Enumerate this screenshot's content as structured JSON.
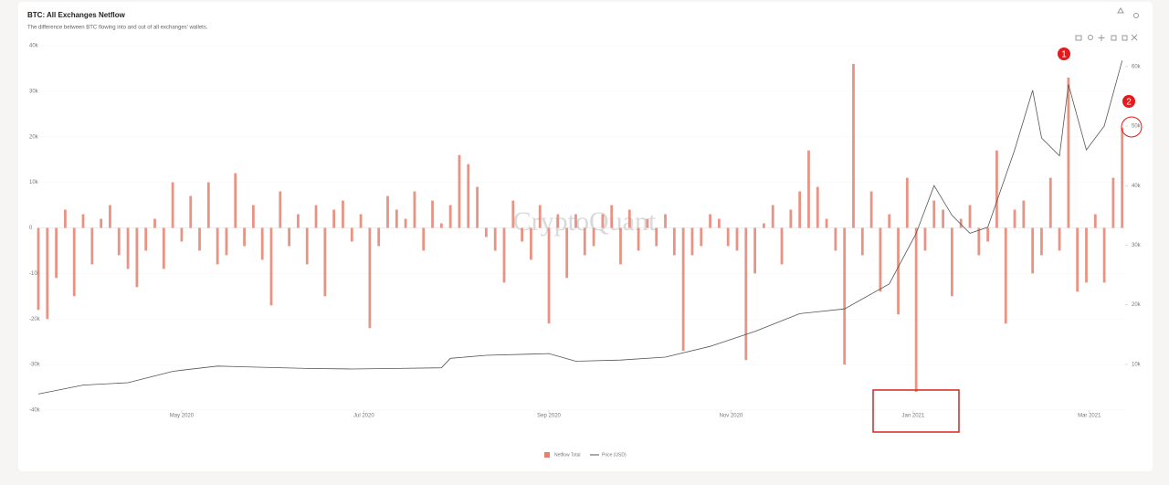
{
  "chart_data": {
    "type": "bar",
    "title": "BTC: All Exchanges Netflow",
    "subtitle": "The difference between BTC flowing into and out of all exchanges' wallets.",
    "watermark": "CryptoQuant",
    "xlim": [
      0,
      364
    ],
    "xticks": [
      {
        "value": 48,
        "label": "May 2020"
      },
      {
        "value": 109,
        "label": "Jul 2020"
      },
      {
        "value": 171,
        "label": "Sep 2020"
      },
      {
        "value": 232,
        "label": "Nov 2020"
      },
      {
        "value": 293,
        "label": "Jan 2021"
      },
      {
        "value": 352,
        "label": "Mar 2021"
      }
    ],
    "ylim": [
      -40000,
      40000
    ],
    "yticks": [
      {
        "value": -40000,
        "label": "-40k"
      },
      {
        "value": -30000,
        "label": "-30k"
      },
      {
        "value": -20000,
        "label": "-20k"
      },
      {
        "value": -10000,
        "label": "-10k"
      },
      {
        "value": 0,
        "label": "0"
      },
      {
        "value": 10000,
        "label": "10k"
      },
      {
        "value": 20000,
        "label": "20k"
      },
      {
        "value": 30000,
        "label": "30k"
      },
      {
        "value": 40000,
        "label": "40k"
      }
    ],
    "y2lim": [
      2300,
      63500
    ],
    "y2ticks": [
      {
        "value": 10000,
        "label": "10k"
      },
      {
        "value": 20000,
        "label": "20k"
      },
      {
        "value": 30000,
        "label": "30k"
      },
      {
        "value": 40000,
        "label": "40k"
      },
      {
        "value": 50000,
        "label": "50k"
      },
      {
        "value": 60000,
        "label": "60k"
      }
    ],
    "grid": true,
    "annotations": [
      "1",
      "2"
    ],
    "series": [
      {
        "name": "Netflow Total",
        "type": "bar",
        "color": "#e5806f",
        "x": [
          0,
          3,
          6,
          9,
          12,
          15,
          18,
          21,
          24,
          27,
          30,
          33,
          36,
          39,
          42,
          45,
          48,
          51,
          54,
          57,
          60,
          63,
          66,
          69,
          72,
          75,
          78,
          81,
          84,
          87,
          90,
          93,
          96,
          99,
          102,
          105,
          108,
          111,
          114,
          117,
          120,
          123,
          126,
          129,
          132,
          135,
          138,
          141,
          144,
          147,
          150,
          153,
          156,
          159,
          162,
          165,
          168,
          171,
          174,
          177,
          180,
          183,
          186,
          189,
          192,
          195,
          198,
          201,
          204,
          207,
          210,
          213,
          216,
          219,
          222,
          225,
          228,
          231,
          234,
          237,
          240,
          243,
          246,
          249,
          252,
          255,
          258,
          261,
          264,
          267,
          270,
          273,
          276,
          279,
          282,
          285,
          288,
          291,
          294,
          297,
          300,
          303,
          306,
          309,
          312,
          315,
          318,
          321,
          324,
          327,
          330,
          333,
          336,
          339,
          342,
          345,
          348,
          351,
          354,
          357,
          360,
          363
        ],
        "values": [
          -18000,
          -20000,
          -11000,
          4000,
          -15000,
          3000,
          -8000,
          2000,
          5000,
          -6000,
          -9000,
          -13000,
          -5000,
          2000,
          -9000,
          10000,
          -3000,
          7000,
          -5000,
          10000,
          -8000,
          -6000,
          12000,
          -4000,
          5000,
          -7000,
          -17000,
          8000,
          -4000,
          3000,
          -8000,
          5000,
          -15000,
          4000,
          6000,
          -3000,
          3000,
          -22000,
          -4000,
          7000,
          4000,
          2000,
          8000,
          -5000,
          6000,
          1000,
          5000,
          16000,
          14000,
          9000,
          -2000,
          -5000,
          -12000,
          6000,
          -3000,
          -7000,
          5000,
          -21000,
          3000,
          -11000,
          3000,
          -6000,
          -4000,
          3000,
          5000,
          -8000,
          4000,
          -5000,
          2000,
          -4000,
          3000,
          -6000,
          -27000,
          -6000,
          -4000,
          3000,
          2000,
          -4000,
          -5000,
          -29000,
          -10000,
          1000,
          5000,
          -8000,
          4000,
          8000,
          17000,
          9000,
          2000,
          -5000,
          -30000,
          36000,
          -6000,
          8000,
          -14000,
          3000,
          -19000,
          11000,
          -36000,
          -5000,
          6000,
          4000,
          -15000,
          2000,
          5000,
          -6000,
          -3000,
          17000,
          -21000,
          4000,
          6000,
          -10000,
          -6000,
          11000,
          -5000,
          33000,
          -14000,
          -12000,
          3000,
          -12000,
          11000,
          22000
        ]
      },
      {
        "name": "Price (USD)",
        "type": "line",
        "axis": "y2",
        "color": "#555555",
        "x": [
          0,
          15,
          30,
          45,
          48,
          60,
          75,
          90,
          105,
          120,
          135,
          138,
          150,
          165,
          171,
          180,
          195,
          210,
          225,
          240,
          255,
          270,
          285,
          294,
          300,
          306,
          312,
          318,
          327,
          333,
          336,
          342,
          345,
          351,
          357,
          363
        ],
        "values": [
          5000,
          6500,
          6900,
          8800,
          9000,
          9700,
          9500,
          9300,
          9200,
          9300,
          9400,
          11000,
          11500,
          11700,
          11800,
          10500,
          10700,
          11200,
          13000,
          15500,
          18500,
          19300,
          23500,
          32000,
          40000,
          35000,
          32000,
          33000,
          46000,
          56000,
          48000,
          45000,
          57000,
          46000,
          50000,
          61000
        ]
      }
    ]
  }
}
